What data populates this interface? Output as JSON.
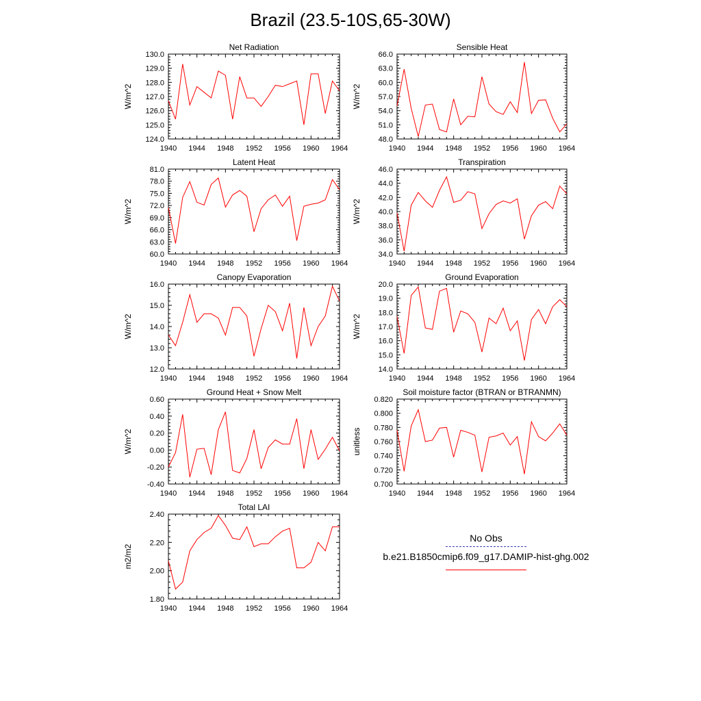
{
  "figure": {
    "title": "Brazil (23.5-10S,65-30W)"
  },
  "colors": {
    "model_line": "#ff0000",
    "obs_line": "#3b3bb5",
    "axis": "#000000"
  },
  "legend": {
    "obs_label": "No Obs",
    "model_label": "b.e21.B1850cmip6.f09_g17.DAMIP-hist-ghg.002"
  },
  "chart_data": [
    {
      "type": "line",
      "title": "Net Radiation",
      "xlabel": "",
      "ylabel": "W/m^2",
      "xlim": [
        1940,
        1964
      ],
      "ylim": [
        124.0,
        130.0
      ],
      "xticks": [
        "1940",
        "1944",
        "1948",
        "1952",
        "1956",
        "1960",
        "1964"
      ],
      "yticks": [
        "124.0",
        "125.0",
        "126.0",
        "127.0",
        "128.0",
        "129.0",
        "130.0"
      ],
      "x": [
        1940,
        1941,
        1942,
        1943,
        1944,
        1945,
        1946,
        1947,
        1948,
        1949,
        1950,
        1951,
        1952,
        1953,
        1954,
        1955,
        1956,
        1957,
        1958,
        1959,
        1960,
        1961,
        1962,
        1963,
        1964
      ],
      "series": [
        {
          "values": [
            126.7,
            125.4,
            129.3,
            126.4,
            127.7,
            127.3,
            126.9,
            128.8,
            128.5,
            125.4,
            128.4,
            126.9,
            126.9,
            126.3,
            127.0,
            127.8,
            127.7,
            127.9,
            128.1,
            125.0,
            128.6,
            128.6,
            125.8,
            128.1,
            127.4
          ]
        }
      ]
    },
    {
      "type": "line",
      "title": "Sensible Heat",
      "xlabel": "",
      "ylabel": "W/m^2",
      "xlim": [
        1940,
        1964
      ],
      "ylim": [
        48.0,
        66.0
      ],
      "xticks": [
        "1940",
        "1944",
        "1948",
        "1952",
        "1956",
        "1960",
        "1964"
      ],
      "yticks": [
        "48.0",
        "51.0",
        "54.0",
        "57.0",
        "60.0",
        "63.0",
        "66.0"
      ],
      "x": [
        1940,
        1941,
        1942,
        1943,
        1944,
        1945,
        1946,
        1947,
        1948,
        1949,
        1950,
        1951,
        1952,
        1953,
        1954,
        1955,
        1956,
        1957,
        1958,
        1959,
        1960,
        1961,
        1962,
        1963,
        1964
      ],
      "series": [
        {
          "values": [
            55.0,
            62.8,
            54.5,
            48.5,
            55.2,
            55.4,
            50.0,
            49.5,
            56.5,
            51.0,
            52.8,
            52.7,
            61.2,
            55.4,
            53.8,
            53.2,
            55.9,
            53.6,
            64.3,
            53.4,
            56.2,
            56.3,
            52.4,
            49.5,
            51.2
          ]
        }
      ]
    },
    {
      "type": "line",
      "title": "Latent Heat",
      "xlabel": "",
      "ylabel": "W/m^2",
      "xlim": [
        1940,
        1964
      ],
      "ylim": [
        60.0,
        81.0
      ],
      "xticks": [
        "1940",
        "1944",
        "1948",
        "1952",
        "1956",
        "1960",
        "1964"
      ],
      "yticks": [
        "60.0",
        "63.0",
        "66.0",
        "69.0",
        "72.0",
        "75.0",
        "78.0",
        "81.0"
      ],
      "x": [
        1940,
        1941,
        1942,
        1943,
        1944,
        1945,
        1946,
        1947,
        1948,
        1949,
        1950,
        1951,
        1952,
        1953,
        1954,
        1955,
        1956,
        1957,
        1958,
        1959,
        1960,
        1961,
        1962,
        1963,
        1964
      ],
      "series": [
        {
          "values": [
            71.5,
            62.6,
            74.0,
            77.9,
            72.8,
            72.1,
            77.2,
            78.8,
            71.6,
            74.6,
            75.7,
            74.3,
            65.5,
            71.2,
            73.4,
            74.6,
            71.8,
            74.3,
            63.3,
            71.8,
            72.3,
            72.6,
            73.4,
            78.4,
            75.9
          ]
        }
      ]
    },
    {
      "type": "line",
      "title": "Transpiration",
      "xlabel": "",
      "ylabel": "W/m^2",
      "xlim": [
        1940,
        1964
      ],
      "ylim": [
        34.0,
        46.0
      ],
      "xticks": [
        "1940",
        "1944",
        "1948",
        "1952",
        "1956",
        "1960",
        "1964"
      ],
      "yticks": [
        "34.0",
        "36.0",
        "38.0",
        "40.0",
        "42.0",
        "44.0",
        "46.0"
      ],
      "x": [
        1940,
        1941,
        1942,
        1943,
        1944,
        1945,
        1946,
        1947,
        1948,
        1949,
        1950,
        1951,
        1952,
        1953,
        1954,
        1955,
        1956,
        1957,
        1958,
        1959,
        1960,
        1961,
        1962,
        1963,
        1964
      ],
      "series": [
        {
          "values": [
            39.8,
            34.4,
            40.9,
            42.7,
            41.5,
            40.6,
            43.0,
            44.9,
            41.3,
            41.6,
            42.8,
            42.5,
            37.6,
            39.7,
            41.0,
            41.5,
            41.2,
            41.8,
            36.1,
            39.4,
            40.9,
            41.4,
            40.4,
            43.6,
            42.5
          ]
        }
      ]
    },
    {
      "type": "line",
      "title": "Canopy Evaporation",
      "xlabel": "",
      "ylabel": "W/m^2",
      "xlim": [
        1940,
        1964
      ],
      "ylim": [
        12.0,
        16.0
      ],
      "xticks": [
        "1940",
        "1944",
        "1948",
        "1952",
        "1956",
        "1960",
        "1964"
      ],
      "yticks": [
        "12.0",
        "13.0",
        "14.0",
        "15.0",
        "16.0"
      ],
      "x": [
        1940,
        1941,
        1942,
        1943,
        1944,
        1945,
        1946,
        1947,
        1948,
        1949,
        1950,
        1951,
        1952,
        1953,
        1954,
        1955,
        1956,
        1957,
        1958,
        1959,
        1960,
        1961,
        1962,
        1963,
        1964
      ],
      "series": [
        {
          "values": [
            13.6,
            13.1,
            14.2,
            15.5,
            14.2,
            14.6,
            14.6,
            14.4,
            13.6,
            14.9,
            14.9,
            14.5,
            12.6,
            13.9,
            15.0,
            14.7,
            13.8,
            15.1,
            12.5,
            14.9,
            13.1,
            14.0,
            14.5,
            15.9,
            15.2
          ]
        }
      ]
    },
    {
      "type": "line",
      "title": "Ground Evaporation",
      "xlabel": "",
      "ylabel": "W/m^2",
      "xlim": [
        1940,
        1964
      ],
      "ylim": [
        14.0,
        20.0
      ],
      "xticks": [
        "1940",
        "1944",
        "1948",
        "1952",
        "1956",
        "1960",
        "1964"
      ],
      "yticks": [
        "14.0",
        "15.0",
        "16.0",
        "17.0",
        "18.0",
        "19.0",
        "20.0"
      ],
      "x": [
        1940,
        1941,
        1942,
        1943,
        1944,
        1945,
        1946,
        1947,
        1948,
        1949,
        1950,
        1951,
        1952,
        1953,
        1954,
        1955,
        1956,
        1957,
        1958,
        1959,
        1960,
        1961,
        1962,
        1963,
        1964
      ],
      "series": [
        {
          "values": [
            17.7,
            15.1,
            19.2,
            19.8,
            16.9,
            16.8,
            19.5,
            19.7,
            16.6,
            18.1,
            17.9,
            17.3,
            15.2,
            17.6,
            17.2,
            18.3,
            16.7,
            17.4,
            14.6,
            17.5,
            18.2,
            17.2,
            18.4,
            18.9,
            18.4
          ]
        }
      ]
    },
    {
      "type": "line",
      "title": "Ground Heat + Snow Melt",
      "xlabel": "",
      "ylabel": "W/m^2",
      "xlim": [
        1940,
        1964
      ],
      "ylim": [
        -0.4,
        0.6
      ],
      "xticks": [
        "1940",
        "1944",
        "1948",
        "1952",
        "1956",
        "1960",
        "1964"
      ],
      "yticks": [
        "-0.40",
        "-0.20",
        "0.00",
        "0.20",
        "0.40",
        "0.60"
      ],
      "x": [
        1940,
        1941,
        1942,
        1943,
        1944,
        1945,
        1946,
        1947,
        1948,
        1949,
        1950,
        1951,
        1952,
        1953,
        1954,
        1955,
        1956,
        1957,
        1958,
        1959,
        1960,
        1961,
        1962,
        1963,
        1964
      ],
      "series": [
        {
          "values": [
            -0.2,
            -0.03,
            0.42,
            -0.32,
            0.01,
            0.02,
            -0.29,
            0.24,
            0.45,
            -0.24,
            -0.27,
            -0.1,
            0.24,
            -0.22,
            0.03,
            0.12,
            0.07,
            0.07,
            0.37,
            -0.22,
            0.24,
            -0.11,
            0.01,
            0.15,
            -0.01
          ]
        }
      ]
    },
    {
      "type": "line",
      "title": "Soil moisture factor (BTRAN or BTRANMN)",
      "xlabel": "",
      "ylabel": "unitless",
      "xlim": [
        1940,
        1964
      ],
      "ylim": [
        0.7,
        0.82
      ],
      "xticks": [
        "1940",
        "1944",
        "1948",
        "1952",
        "1956",
        "1960",
        "1964"
      ],
      "yticks": [
        "0.700",
        "0.720",
        "0.740",
        "0.760",
        "0.780",
        "0.800",
        "0.820"
      ],
      "x": [
        1940,
        1941,
        1942,
        1943,
        1944,
        1945,
        1946,
        1947,
        1948,
        1949,
        1950,
        1951,
        1952,
        1953,
        1954,
        1955,
        1956,
        1957,
        1958,
        1959,
        1960,
        1961,
        1962,
        1963,
        1964
      ],
      "series": [
        {
          "values": [
            0.776,
            0.718,
            0.782,
            0.805,
            0.76,
            0.762,
            0.779,
            0.78,
            0.738,
            0.776,
            0.773,
            0.769,
            0.717,
            0.766,
            0.768,
            0.772,
            0.755,
            0.767,
            0.714,
            0.788,
            0.767,
            0.761,
            0.772,
            0.785,
            0.769
          ]
        }
      ]
    },
    {
      "type": "line",
      "title": "Total LAI",
      "xlabel": "",
      "ylabel": "m2/m2",
      "xlim": [
        1940,
        1964
      ],
      "ylim": [
        1.8,
        2.4
      ],
      "xticks": [
        "1940",
        "1944",
        "1948",
        "1952",
        "1956",
        "1960",
        "1964"
      ],
      "yticks": [
        "1.80",
        "2.00",
        "2.20",
        "2.40"
      ],
      "x": [
        1940,
        1941,
        1942,
        1943,
        1944,
        1945,
        1946,
        1947,
        1948,
        1949,
        1950,
        1951,
        1952,
        1953,
        1954,
        1955,
        1956,
        1957,
        1958,
        1959,
        1960,
        1961,
        1962,
        1963,
        1964
      ],
      "series": [
        {
          "values": [
            2.07,
            1.87,
            1.92,
            2.14,
            2.22,
            2.27,
            2.3,
            2.39,
            2.32,
            2.23,
            2.22,
            2.31,
            2.17,
            2.19,
            2.19,
            2.24,
            2.28,
            2.3,
            2.02,
            2.02,
            2.06,
            2.2,
            2.14,
            2.31,
            2.31
          ]
        }
      ]
    }
  ]
}
